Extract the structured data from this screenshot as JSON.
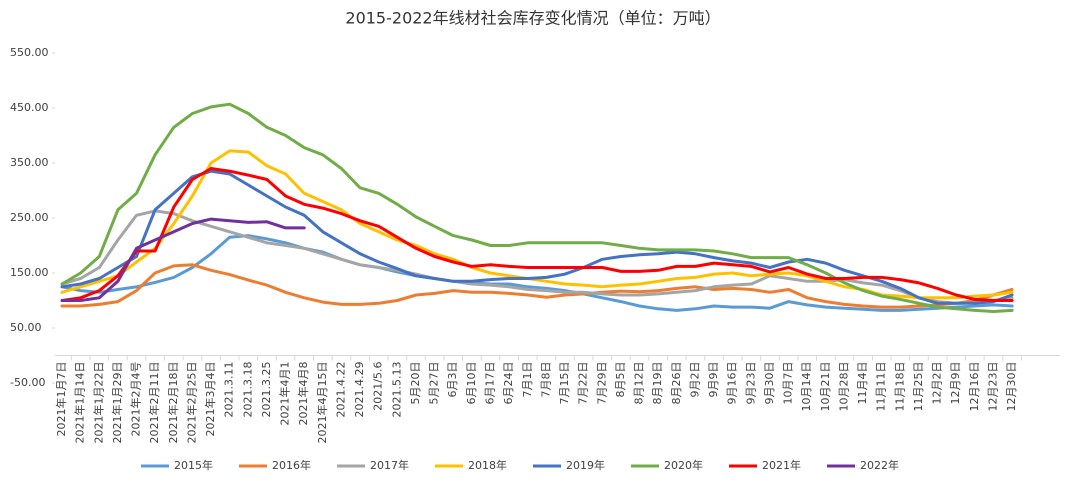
{
  "chart_data": {
    "type": "line",
    "title": "2015-2022年线材社会库存变化情况（单位：万吨）",
    "categories": [
      "2021年1月7日",
      "2021年1月14日",
      "2021年1月22日",
      "2021年1月29日",
      "2021年2月4号",
      "2021年2月11日",
      "2021年2月18日",
      "2021年2月25日",
      "2021年3月4日",
      "2021.3.11",
      "2021.3.18",
      "2021.3.25",
      "2021年4月1",
      "2021年4月8",
      "2021年4月15日",
      "2021.4.22",
      "2021.4.29",
      "2021/5.6",
      "2021.5.13",
      "5月20日",
      "5月27日",
      "6月3日",
      "6月10日",
      "6月17日",
      "6月24日",
      "7月1日",
      "7月8日",
      "7月15日",
      "7月22日",
      "7月29日",
      "8月5日",
      "8月12日",
      "8月19日",
      "8月26日",
      "9月2日",
      "9月9日",
      "9月16日",
      "9月23日",
      "9月30日",
      "10月7日",
      "10月14日",
      "10月21日",
      "10月28日",
      "11月4日",
      "11月11日",
      "11月18日",
      "11月25日",
      "12月2日",
      "12月9日",
      "12月16日",
      "12月23日",
      "12月30日"
    ],
    "series": [
      {
        "name": "2015年",
        "color": "#5b9bd5",
        "values": [
          125,
          118,
          115,
          120,
          125,
          133,
          142,
          160,
          185,
          215,
          218,
          212,
          205,
          195,
          188,
          175,
          165,
          160,
          152,
          145,
          140,
          135,
          132,
          130,
          130,
          125,
          122,
          118,
          112,
          105,
          98,
          90,
          85,
          82,
          85,
          90,
          88,
          88,
          86,
          98,
          92,
          88,
          86,
          84,
          82,
          82,
          84,
          86,
          88,
          90,
          92,
          90
        ]
      },
      {
        "name": "2016年",
        "color": "#ed7d31",
        "values": [
          90,
          90,
          93,
          98,
          118,
          150,
          163,
          165,
          155,
          147,
          137,
          128,
          115,
          105,
          97,
          93,
          93,
          95,
          100,
          110,
          113,
          118,
          115,
          115,
          113,
          110,
          106,
          110,
          112,
          115,
          117,
          116,
          118,
          122,
          125,
          120,
          122,
          120,
          115,
          120,
          105,
          98,
          93,
          90,
          88,
          88,
          90,
          92,
          95,
          100,
          110,
          120
        ]
      },
      {
        "name": "2017年",
        "color": "#a5a5a5",
        "values": [
          130,
          140,
          160,
          210,
          255,
          263,
          258,
          245,
          235,
          225,
          215,
          205,
          200,
          195,
          185,
          175,
          165,
          160,
          155,
          148,
          140,
          135,
          130,
          128,
          125,
          120,
          118,
          115,
          115,
          112,
          110,
          110,
          112,
          115,
          118,
          125,
          128,
          130,
          145,
          140,
          135,
          135,
          138,
          132,
          128,
          118,
          105,
          98,
          95,
          96,
          100,
          105
        ]
      },
      {
        "name": "2018年",
        "color": "#ffc000",
        "values": [
          115,
          125,
          135,
          145,
          170,
          195,
          240,
          290,
          350,
          372,
          370,
          345,
          330,
          295,
          280,
          265,
          240,
          225,
          210,
          200,
          185,
          175,
          160,
          150,
          145,
          140,
          135,
          130,
          128,
          125,
          128,
          130,
          135,
          140,
          142,
          148,
          150,
          145,
          148,
          150,
          145,
          135,
          125,
          120,
          110,
          108,
          105,
          105,
          105,
          108,
          110,
          115
        ]
      },
      {
        "name": "2019年",
        "color": "#4472c4",
        "values": [
          125,
          130,
          140,
          160,
          180,
          265,
          295,
          325,
          335,
          330,
          310,
          290,
          270,
          255,
          225,
          205,
          185,
          170,
          158,
          145,
          140,
          135,
          135,
          138,
          140,
          140,
          142,
          148,
          160,
          175,
          180,
          183,
          185,
          188,
          185,
          178,
          172,
          168,
          160,
          170,
          175,
          168,
          155,
          145,
          135,
          122,
          105,
          95,
          95,
          95,
          98,
          110
        ]
      },
      {
        "name": "2020年",
        "color": "#70ad47",
        "values": [
          130,
          150,
          180,
          265,
          295,
          365,
          415,
          440,
          452,
          457,
          440,
          415,
          400,
          378,
          365,
          340,
          305,
          295,
          275,
          252,
          235,
          218,
          210,
          200,
          200,
          205,
          205,
          205,
          205,
          205,
          200,
          195,
          192,
          192,
          192,
          190,
          185,
          178,
          178,
          178,
          165,
          150,
          132,
          118,
          108,
          102,
          95,
          88,
          85,
          82,
          80,
          82
        ]
      },
      {
        "name": "2021年",
        "color": "#ff0000",
        "values": [
          100,
          105,
          118,
          145,
          190,
          190,
          270,
          320,
          340,
          335,
          328,
          320,
          290,
          275,
          268,
          258,
          245,
          235,
          215,
          195,
          180,
          170,
          162,
          165,
          162,
          160,
          160,
          160,
          160,
          160,
          153,
          153,
          155,
          162,
          162,
          168,
          165,
          162,
          152,
          160,
          148,
          140,
          140,
          142,
          142,
          138,
          132,
          122,
          110,
          102,
          100,
          100
        ]
      },
      {
        "name": "2022年",
        "color": "#7030a0",
        "values": [
          100,
          100,
          105,
          135,
          195,
          210,
          225,
          240,
          248,
          245,
          242,
          243,
          232,
          232,
          null,
          null,
          null,
          null,
          null,
          null,
          null,
          null,
          null,
          null,
          null,
          null,
          null,
          null,
          null,
          null,
          null,
          null,
          null,
          null,
          null,
          null,
          null,
          null,
          null,
          null,
          null,
          null,
          null,
          null,
          null,
          null,
          null,
          null,
          null,
          null,
          null,
          null
        ]
      }
    ],
    "ylim": [
      -50,
      550
    ],
    "yticks": [
      {
        "value": -50,
        "label": "-50.00"
      },
      {
        "value": 50,
        "label": "50.00"
      },
      {
        "value": 150,
        "label": "150.00"
      },
      {
        "value": 250,
        "label": "250.00"
      },
      {
        "value": 350,
        "label": "350.00"
      },
      {
        "value": 450,
        "label": "450.00"
      },
      {
        "value": 550,
        "label": "550.00"
      }
    ],
    "legend": "bottom"
  }
}
